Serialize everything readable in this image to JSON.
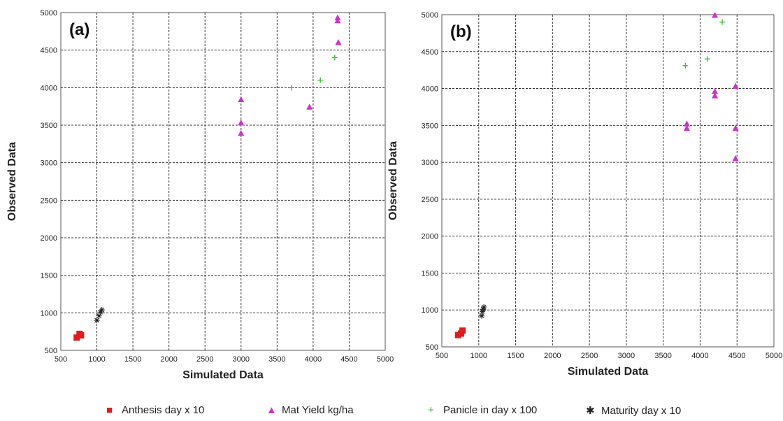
{
  "chart_data": [
    {
      "type": "scatter",
      "title": "",
      "panel_label": "(a)",
      "xlabel": "Simulated Data",
      "ylabel": "Observed Data",
      "xlim": [
        500,
        5000
      ],
      "ylim": [
        500,
        5000
      ],
      "xticks": [
        500,
        1000,
        1500,
        2000,
        2500,
        3000,
        3500,
        4000,
        4500,
        5000
      ],
      "yticks": [
        500,
        1000,
        1500,
        2000,
        2500,
        3000,
        3500,
        4000,
        4500,
        5000
      ],
      "grid": true,
      "series": [
        {
          "name": "Anthesis day  x 10",
          "marker": "square",
          "color": "#e31a1c",
          "points": [
            [
              720,
              670
            ],
            [
              760,
              720
            ],
            [
              780,
              700
            ]
          ]
        },
        {
          "name": "Mat Yield kg/ha",
          "marker": "triangle",
          "color": "#cc33cc",
          "points": [
            [
              3000,
              3840
            ],
            [
              3000,
              3530
            ],
            [
              3000,
              3390
            ],
            [
              3950,
              3740
            ],
            [
              4340,
              4930
            ],
            [
              4340,
              4890
            ],
            [
              4350,
              4600
            ]
          ]
        },
        {
          "name": "Panicle in day  x 100",
          "marker": "plus",
          "color": "#33bb33",
          "points": [
            [
              3700,
              4000
            ],
            [
              4100,
              4100
            ],
            [
              4300,
              4400
            ]
          ]
        },
        {
          "name": "Maturity day   x 10",
          "marker": "asterisk",
          "color": "#222222",
          "points": [
            [
              1000,
              900
            ],
            [
              1030,
              960
            ],
            [
              1050,
              1010
            ],
            [
              1070,
              1040
            ]
          ]
        }
      ]
    },
    {
      "type": "scatter",
      "title": "",
      "panel_label": "(b)",
      "xlabel": "Simulated Data",
      "ylabel": "Observed Data",
      "xlim": [
        500,
        5000
      ],
      "ylim": [
        500,
        5000
      ],
      "xticks": [
        500,
        1000,
        1500,
        2000,
        2500,
        3000,
        3500,
        4000,
        4500,
        5000
      ],
      "yticks": [
        500,
        1000,
        1500,
        2000,
        2500,
        3000,
        3500,
        4000,
        4500,
        5000
      ],
      "grid": true,
      "series": [
        {
          "name": "Anthesis day  x 10",
          "marker": "square",
          "color": "#e31a1c",
          "points": [
            [
              720,
              660
            ],
            [
              760,
              680
            ],
            [
              780,
              720
            ]
          ]
        },
        {
          "name": "Mat Yield kg/ha",
          "marker": "triangle",
          "color": "#cc33cc",
          "points": [
            [
              4200,
              4990
            ],
            [
              3820,
              3520
            ],
            [
              3820,
              3460
            ],
            [
              4200,
              3960
            ],
            [
              4200,
              3900
            ],
            [
              4480,
              4030
            ],
            [
              4480,
              3460
            ],
            [
              4480,
              3050
            ]
          ]
        },
        {
          "name": "Panicle in day  x 100",
          "marker": "plus",
          "color": "#33bb33",
          "points": [
            [
              3800,
              4310
            ],
            [
              4100,
              4400
            ],
            [
              4300,
              4900
            ]
          ]
        },
        {
          "name": "Maturity day   x 10",
          "marker": "asterisk",
          "color": "#222222",
          "points": [
            [
              1040,
              920
            ],
            [
              1050,
              980
            ],
            [
              1060,
              1010
            ],
            [
              1070,
              1040
            ]
          ]
        }
      ]
    }
  ],
  "legend": {
    "placement": "bottom",
    "items": [
      {
        "label": "Anthesis day   x 10",
        "marker": "square",
        "color": "#e31a1c"
      },
      {
        "label": "Mat Yield kg/ha",
        "marker": "triangle",
        "color": "#cc33cc"
      },
      {
        "label": "Panicle in day  x 100",
        "marker": "plus",
        "color": "#33bb33"
      },
      {
        "label": "Maturity day   x 10",
        "marker": "asterisk",
        "color": "#222222"
      }
    ]
  }
}
